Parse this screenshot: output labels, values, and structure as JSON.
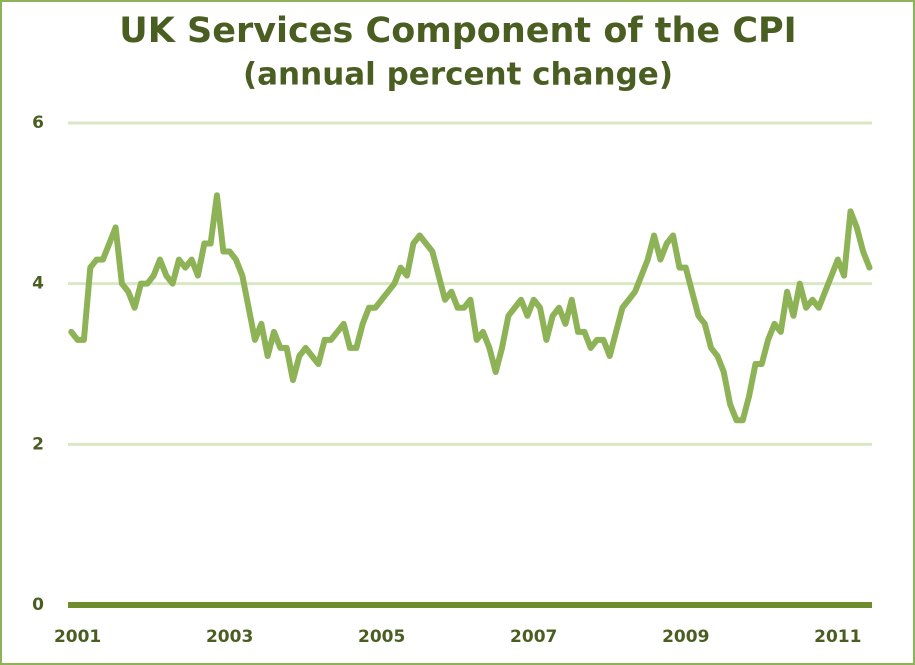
{
  "chart_data": {
    "type": "line",
    "title": "UK Services Component of the CPI",
    "subtitle": "(annual percent change)",
    "x": [
      2000.917,
      2001.0,
      2001.083,
      2001.167,
      2001.25,
      2001.333,
      2001.417,
      2001.5,
      2001.583,
      2001.667,
      2001.75,
      2001.833,
      2001.917,
      2002.0,
      2002.083,
      2002.167,
      2002.25,
      2002.333,
      2002.417,
      2002.5,
      2002.583,
      2002.667,
      2002.75,
      2002.833,
      2002.917,
      2003.0,
      2003.083,
      2003.167,
      2003.25,
      2003.333,
      2003.417,
      2003.5,
      2003.583,
      2003.667,
      2003.75,
      2003.833,
      2003.917,
      2004.0,
      2004.083,
      2004.167,
      2004.25,
      2004.333,
      2004.417,
      2004.5,
      2004.583,
      2004.667,
      2004.75,
      2004.833,
      2004.917,
      2005.0,
      2005.083,
      2005.167,
      2005.25,
      2005.333,
      2005.417,
      2005.5,
      2005.583,
      2005.667,
      2005.75,
      2005.833,
      2005.917,
      2006.0,
      2006.083,
      2006.167,
      2006.25,
      2006.333,
      2006.417,
      2006.5,
      2006.583,
      2006.667,
      2006.75,
      2006.833,
      2006.917,
      2007.0,
      2007.083,
      2007.167,
      2007.25,
      2007.333,
      2007.417,
      2007.5,
      2007.583,
      2007.667,
      2007.75,
      2007.833,
      2007.917,
      2008.0,
      2008.083,
      2008.167,
      2008.25,
      2008.333,
      2008.417,
      2008.5,
      2008.583,
      2008.667,
      2008.75,
      2008.833,
      2008.917,
      2009.0,
      2009.083,
      2009.167,
      2009.25,
      2009.333,
      2009.417,
      2009.5,
      2009.583,
      2009.667,
      2009.75,
      2009.833,
      2009.917,
      2010.0,
      2010.083,
      2010.167,
      2010.25,
      2010.333,
      2010.417,
      2010.5,
      2010.583,
      2010.667,
      2010.75,
      2010.833,
      2010.917,
      2011.0,
      2011.083,
      2011.167,
      2011.25,
      2011.333,
      2011.417
    ],
    "series": [
      {
        "color": "#8db356",
        "values": [
          3.4,
          3.3,
          3.3,
          4.2,
          4.3,
          4.3,
          4.5,
          4.7,
          4.0,
          3.9,
          3.7,
          4.0,
          4.0,
          4.1,
          4.3,
          4.1,
          4.0,
          4.3,
          4.2,
          4.3,
          4.1,
          4.5,
          4.5,
          5.1,
          4.4,
          4.4,
          4.3,
          4.1,
          3.7,
          3.3,
          3.5,
          3.1,
          3.4,
          3.2,
          3.2,
          2.8,
          3.1,
          3.2,
          3.1,
          3.0,
          3.3,
          3.3,
          3.4,
          3.5,
          3.2,
          3.2,
          3.5,
          3.7,
          3.7,
          3.8,
          3.9,
          4.0,
          4.2,
          4.1,
          4.5,
          4.6,
          4.5,
          4.4,
          4.1,
          3.8,
          3.9,
          3.7,
          3.7,
          3.8,
          3.3,
          3.4,
          3.2,
          2.9,
          3.2,
          3.6,
          3.7,
          3.8,
          3.6,
          3.8,
          3.7,
          3.3,
          3.6,
          3.7,
          3.5,
          3.8,
          3.4,
          3.4,
          3.2,
          3.3,
          3.3,
          3.1,
          3.4,
          3.7,
          3.8,
          3.9,
          4.1,
          4.3,
          4.6,
          4.3,
          4.5,
          4.6,
          4.2,
          4.2,
          3.9,
          3.6,
          3.5,
          3.2,
          3.1,
          2.9,
          2.5,
          2.3,
          2.3,
          2.6,
          3.0,
          3.0,
          3.3,
          3.5,
          3.4,
          3.9,
          3.6,
          4.0,
          3.7,
          3.8,
          3.7,
          3.9,
          4.1,
          4.3,
          4.1,
          4.9,
          4.7,
          4.4,
          4.2
        ]
      }
    ],
    "xlim": [
      2000.9,
      2011.45
    ],
    "xticks": [
      2001,
      2003,
      2005,
      2007,
      2009,
      2011
    ],
    "ylim": [
      0,
      6
    ],
    "yticks": [
      0,
      2,
      4,
      6
    ],
    "grid": true
  }
}
